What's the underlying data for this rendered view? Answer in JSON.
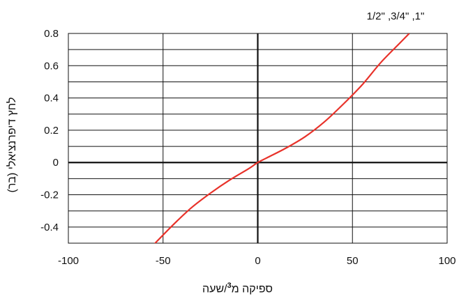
{
  "chart_data": {
    "type": "line",
    "series_label": "1/2\" ,3/4\" ,1\"",
    "xlabel_prefix": "ספיקה מ",
    "xlabel_sup": "3",
    "xlabel_suffix": "/שעה",
    "ylabel": "לחץ דיפרנציאלי (בר)",
    "xlim": [
      -100,
      100
    ],
    "ylim": [
      -0.5,
      0.8
    ],
    "x_ticks": [
      -100,
      -50,
      0,
      50,
      100
    ],
    "x_tick_labels": [
      "-100",
      "-50",
      "0",
      "50",
      "100"
    ],
    "y_ticks": [
      -0.4,
      -0.2,
      0,
      0.2,
      0.4,
      0.6,
      0.8
    ],
    "y_tick_labels": [
      "-0.4",
      "-0.2",
      "0",
      "0.2",
      "0.4",
      "0.6",
      "0.8"
    ],
    "grid": true,
    "colors": {
      "curve": "#e8322a",
      "grid": "#111111",
      "axis": "#111111"
    },
    "series": [
      {
        "x": [
          -55,
          -45,
          -35,
          -25,
          -15,
          -5,
          0,
          5,
          15,
          25,
          35,
          45,
          55,
          65,
          75,
          80
        ],
        "y": [
          -0.51,
          -0.39,
          -0.28,
          -0.19,
          -0.11,
          -0.04,
          0,
          0.03,
          0.09,
          0.16,
          0.25,
          0.36,
          0.48,
          0.62,
          0.74,
          0.8
        ]
      }
    ]
  }
}
